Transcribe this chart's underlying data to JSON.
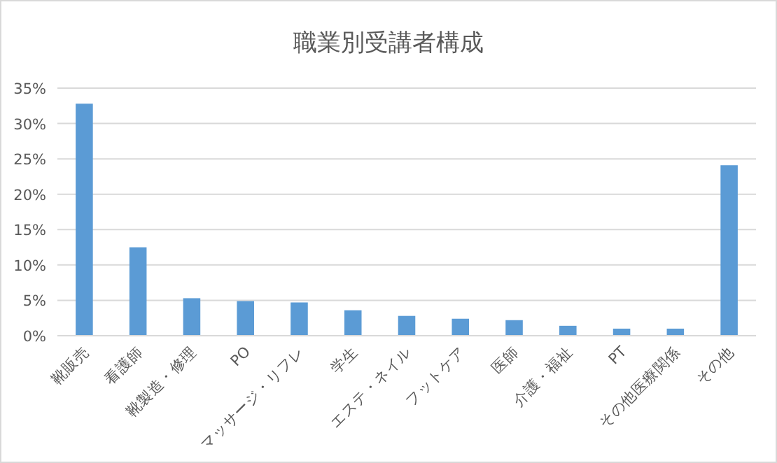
{
  "chart_data": {
    "type": "bar",
    "title": "職業別受講者構成",
    "categories": [
      "靴販売",
      "看護師",
      "靴製造・修理",
      "PO",
      "マッサージ・リフレ",
      "学生",
      "エステ・ネイル",
      "フットケア",
      "医師",
      "介護・福祉",
      "PT",
      "その他医療関係",
      "その他"
    ],
    "values": [
      32.8,
      12.5,
      5.3,
      4.9,
      4.7,
      3.6,
      2.8,
      2.4,
      2.2,
      1.4,
      1.0,
      1.0,
      24.1
    ],
    "color": "#5b9bd5",
    "ylim": [
      0,
      35
    ],
    "yticks": [
      {
        "value": 0,
        "label": "0%"
      },
      {
        "value": 5,
        "label": "5%"
      },
      {
        "value": 10,
        "label": "10%"
      },
      {
        "value": 15,
        "label": "15%"
      },
      {
        "value": 20,
        "label": "20%"
      },
      {
        "value": 25,
        "label": "25%"
      },
      {
        "value": 30,
        "label": "30%"
      },
      {
        "value": 35,
        "label": "35%"
      }
    ],
    "grid": "y"
  }
}
